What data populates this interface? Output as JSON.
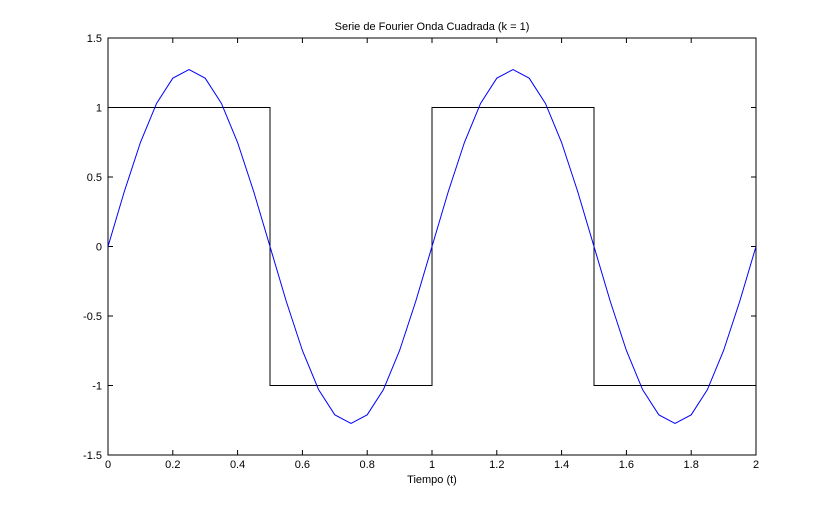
{
  "chart_data": {
    "type": "line",
    "title": "Serie de Fourier Onda Cuadrada (k = 1)",
    "xlabel": "Tiempo (t)",
    "ylabel": "",
    "xlim": [
      0,
      2
    ],
    "ylim": [
      -1.5,
      1.5
    ],
    "xticks": [
      0,
      0.2,
      0.4,
      0.6,
      0.8,
      1,
      1.2,
      1.4,
      1.6,
      1.8,
      2
    ],
    "xtick_labels": [
      "0",
      "0.2",
      "0.4",
      "0.6",
      "0.8",
      "1",
      "1.2",
      "1.4",
      "1.6",
      "1.8",
      "2"
    ],
    "yticks": [
      -1.5,
      -1,
      -0.5,
      0,
      0.5,
      1,
      1.5
    ],
    "ytick_labels": [
      "-1.5",
      "-1",
      "-0.5",
      "0",
      "0.5",
      "1",
      "1.5"
    ],
    "grid": false,
    "series": [
      {
        "color": "#000000",
        "x": [
          0,
          0.5,
          0.5,
          1,
          1,
          1.5,
          1.5,
          2
        ],
        "y": [
          1,
          1,
          -1,
          -1,
          1,
          1,
          -1,
          -1
        ]
      },
      {
        "color": "#0000ff",
        "x": [
          0,
          0.05,
          0.1,
          0.15,
          0.2,
          0.25,
          0.3,
          0.35,
          0.4,
          0.45,
          0.5,
          0.55,
          0.6,
          0.65,
          0.7,
          0.75,
          0.8,
          0.85,
          0.9,
          0.95,
          1,
          1.05,
          1.1,
          1.15,
          1.2,
          1.25,
          1.3,
          1.35,
          1.4,
          1.45,
          1.5,
          1.55,
          1.6,
          1.65,
          1.7,
          1.75,
          1.8,
          1.85,
          1.9,
          1.95,
          2
        ],
        "y": [
          0,
          0.393,
          0.748,
          1.03,
          1.211,
          1.273,
          1.211,
          1.03,
          0.748,
          0.393,
          0,
          -0.393,
          -0.748,
          -1.03,
          -1.211,
          -1.273,
          -1.211,
          -1.03,
          -0.748,
          -0.393,
          0,
          0.393,
          0.748,
          1.03,
          1.211,
          1.273,
          1.211,
          1.03,
          0.748,
          0.393,
          0,
          -0.393,
          -0.748,
          -1.03,
          -1.211,
          -1.273,
          -1.211,
          -1.03,
          -0.748,
          -0.393,
          0
        ]
      }
    ]
  }
}
